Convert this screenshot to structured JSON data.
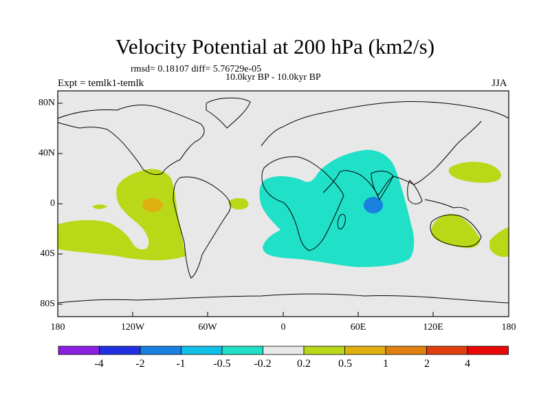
{
  "title": "Velocity Potential at 200 hPa (km2/s)",
  "stats_line": "rmsd= 0.18107 diff= 5.76729e-05",
  "period_line": "10.0kyr BP - 10.0kyr BP",
  "experiment_label": "Expt = temlk1-temlk",
  "season_label": "JJA",
  "x_ticks": [
    "180",
    "120W",
    "60W",
    "0",
    "60E",
    "120E",
    "180"
  ],
  "y_ticks": [
    "80N",
    "40N",
    "0",
    "40S",
    "80S"
  ],
  "colorbar": {
    "colors": [
      "#8a1fe0",
      "#2030e0",
      "#1a80e0",
      "#10c0e8",
      "#20e0c8",
      "#e8e8e8",
      "#b8d818",
      "#e0b010",
      "#e08010",
      "#e04010",
      "#e80808"
    ],
    "labels": [
      "-4",
      "-2",
      "-1",
      "-0.5",
      "-0.2",
      "0.2",
      "0.5",
      "1",
      "2",
      "4"
    ]
  },
  "colors": {
    "ocean": "#e8e8e8",
    "positive_weak": "#b8d818",
    "positive_mid": "#e0b010",
    "negative_weak": "#20e0c8",
    "negative_mid": "#1a80e0"
  }
}
